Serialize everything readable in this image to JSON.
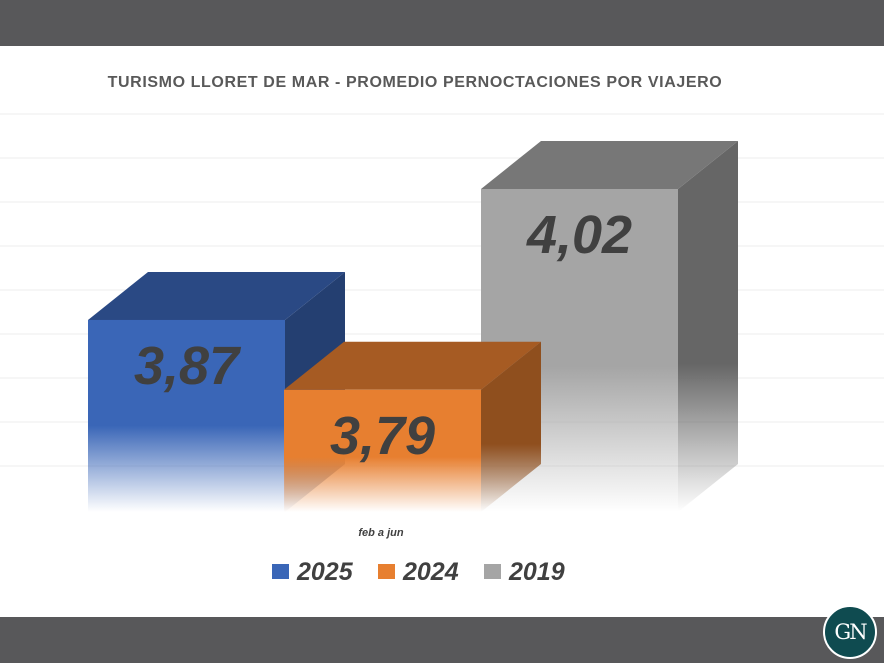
{
  "chart_data": {
    "type": "bar",
    "title": "TURISMO LLORET DE MAR - PROMEDIO PERNOCTACIONES POR VIAJERO",
    "categories": [
      "feb a jun"
    ],
    "series": [
      {
        "name": "2025",
        "values": [
          3.87
        ],
        "label": "3,87",
        "color": "#3a66b7"
      },
      {
        "name": "2024",
        "values": [
          3.79
        ],
        "label": "3,79",
        "color": "#e77f30"
      },
      {
        "name": "2019",
        "values": [
          4.02
        ],
        "label": "4,02",
        "color": "#a5a5a5"
      }
    ],
    "xlabel": "",
    "ylabel": "",
    "ylim": [
      3.65,
      4.12
    ],
    "grid": true,
    "legend_position": "bottom"
  },
  "logo": {
    "text": "GN"
  }
}
